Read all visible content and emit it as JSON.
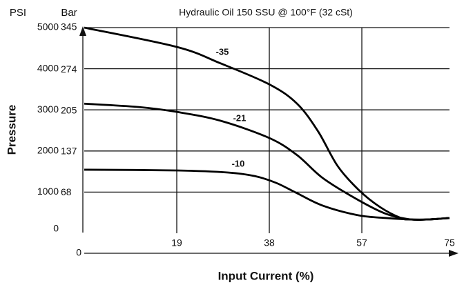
{
  "chart_data": {
    "type": "line",
    "subtitle": "Hydraulic Oil 150 SSU @ 100°F (32 cSt)",
    "xlabel": "Input Current (%)",
    "ylabel": "Pressure",
    "y_unit_label": "PSI",
    "y2_unit_label": "Bar",
    "xlim": [
      0,
      75
    ],
    "xticks": [
      0,
      19,
      38,
      57,
      75
    ],
    "ylim": [
      0,
      5000
    ],
    "yticks": [
      0,
      1000,
      2000,
      3000,
      4000,
      5000
    ],
    "y2lim": [
      0,
      345
    ],
    "y2ticks": [
      68,
      137,
      205,
      274,
      345
    ],
    "grid": true,
    "series": [
      {
        "name": "-35",
        "color": "#000000",
        "x": [
          0,
          19,
          28,
          38,
          43.7,
          48,
          52,
          56.3,
          60.7,
          65,
          67,
          70.6,
          75
        ],
        "values": [
          5000,
          4530,
          4130,
          3620,
          3150,
          2480,
          1640,
          1060,
          640,
          370,
          335,
          335,
          370
        ]
      },
      {
        "name": "-21",
        "color": "#000000",
        "x": [
          0,
          11,
          19,
          28,
          38,
          43.7,
          49,
          56.3,
          62,
          67,
          70.6,
          75
        ],
        "values": [
          3150,
          3070,
          2950,
          2735,
          2315,
          1900,
          1340,
          805,
          470,
          335,
          335,
          370
        ]
      },
      {
        "name": "-10",
        "color": "#000000",
        "x": [
          0,
          19,
          29.5,
          35,
          39.4,
          43.7,
          49,
          56.3,
          62,
          67,
          70.6,
          75
        ],
        "values": [
          1545,
          1527,
          1477,
          1390,
          1225,
          973,
          670,
          436,
          370,
          335,
          335,
          370
        ]
      }
    ]
  }
}
